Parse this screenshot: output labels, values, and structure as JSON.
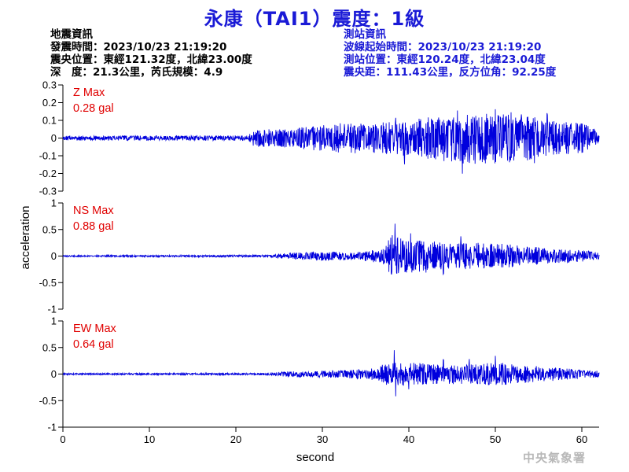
{
  "title": "永康（TAI1）震度：1級",
  "quake_info": {
    "heading": "地震資訊",
    "time": "發震時間：2023/10/23 21:19:20",
    "epicenter": "震央位置：東經121.32度，北緯23.00度",
    "depth_magnitude": "深　度：21.3公里，芮氏規模：4.9"
  },
  "station_info": {
    "heading": "測站資訊",
    "wave_start": "波線起始時間：2023/10/23 21:19:20",
    "location": "測站位置：東經120.24度，北緯23.04度",
    "distance": "震央距：111.43公里，反方位角：92.25度"
  },
  "agency": "中央氣象署",
  "colors": {
    "title": "#1a1ad6",
    "trace": "#0000dd",
    "max_label": "#e00000",
    "station_info": "#1a1ad6"
  },
  "chart_data": [
    {
      "type": "line",
      "component": "Z",
      "max_label": "Z Max",
      "max_value": "0.28 gal",
      "ylim": [
        -0.3,
        0.3
      ],
      "yticks": [
        "0.3",
        "0.2",
        "0.1",
        "0",
        "-0.1",
        "-0.2",
        "-0.3"
      ],
      "envelope": [
        [
          0,
          0.02
        ],
        [
          21.5,
          0.02
        ],
        [
          22,
          0.07
        ],
        [
          25,
          0.07
        ],
        [
          28,
          0.09
        ],
        [
          33,
          0.12
        ],
        [
          36,
          0.12
        ],
        [
          40,
          0.14
        ],
        [
          46,
          0.2
        ],
        [
          52,
          0.2
        ],
        [
          56,
          0.14
        ],
        [
          60,
          0.12
        ],
        [
          62,
          0.06
        ]
      ],
      "peaks": [
        [
          38.5,
          0.17
        ],
        [
          45.6,
          0.22
        ],
        [
          50,
          0.22
        ],
        [
          53,
          0.2
        ],
        [
          46.2,
          -0.29
        ],
        [
          39.5,
          -0.22
        ],
        [
          54.5,
          -0.2
        ],
        [
          56,
          0.2
        ]
      ]
    },
    {
      "type": "line",
      "component": "NS",
      "max_label": "NS Max",
      "max_value": "0.88 gal",
      "ylim": [
        -1,
        1
      ],
      "yticks": [
        "1",
        "0.5",
        "0",
        "-0.5",
        "-1"
      ],
      "envelope": [
        [
          0,
          0.02
        ],
        [
          24,
          0.03
        ],
        [
          26,
          0.08
        ],
        [
          30,
          0.12
        ],
        [
          34,
          0.1
        ],
        [
          37,
          0.2
        ],
        [
          38,
          0.55
        ],
        [
          40,
          0.45
        ],
        [
          44,
          0.35
        ],
        [
          48,
          0.35
        ],
        [
          52,
          0.3
        ],
        [
          56,
          0.2
        ],
        [
          60,
          0.15
        ],
        [
          62,
          0.1
        ]
      ],
      "peaks": [
        [
          38.4,
          0.88
        ],
        [
          38.6,
          -0.5
        ],
        [
          40.2,
          0.6
        ],
        [
          46,
          0.55
        ],
        [
          44,
          -0.5
        ],
        [
          42,
          -0.45
        ]
      ]
    },
    {
      "type": "line",
      "component": "EW",
      "max_label": "EW Max",
      "max_value": "0.64 gal",
      "ylim": [
        -1,
        1
      ],
      "yticks": [
        "1",
        "0.5",
        "0",
        "-0.5",
        "-1"
      ],
      "envelope": [
        [
          0,
          0.02
        ],
        [
          24,
          0.03
        ],
        [
          26,
          0.08
        ],
        [
          32,
          0.1
        ],
        [
          36,
          0.15
        ],
        [
          38,
          0.35
        ],
        [
          40,
          0.3
        ],
        [
          44,
          0.25
        ],
        [
          50,
          0.3
        ],
        [
          54,
          0.22
        ],
        [
          58,
          0.15
        ],
        [
          62,
          0.08
        ]
      ],
      "peaks": [
        [
          38.3,
          0.64
        ],
        [
          38.5,
          -0.58
        ],
        [
          50,
          0.48
        ],
        [
          47,
          0.42
        ],
        [
          40,
          -0.42
        ],
        [
          44,
          0.4
        ]
      ]
    }
  ],
  "x_axis": {
    "label": "second",
    "xlim": [
      0,
      62
    ],
    "ticks": [
      "0",
      "10",
      "20",
      "30",
      "40",
      "50",
      "60"
    ]
  },
  "y_axis": {
    "label": "acceleration"
  }
}
